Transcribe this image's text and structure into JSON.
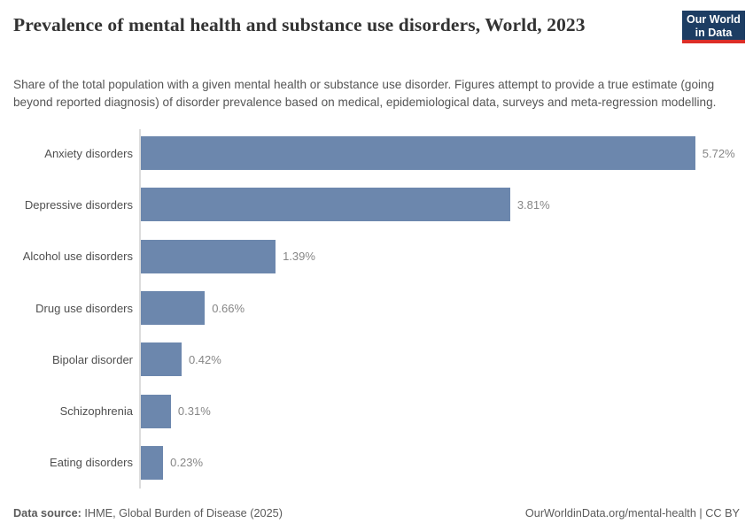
{
  "header": {
    "title": "Prevalence of mental health and substance use disorders, World, 2023",
    "subtitle": "Share of the total population with a given mental health or substance use disorder. Figures attempt to provide a true estimate (going beyond reported diagnosis) of disorder prevalence based on medical, epidemiological data, surveys and meta-regression modelling.",
    "logo": {
      "line1": "Our World",
      "line2": "in Data"
    }
  },
  "chart_data": {
    "type": "bar",
    "orientation": "horizontal",
    "title": "Prevalence of mental health and substance use disorders, World, 2023",
    "categories": [
      "Anxiety disorders",
      "Depressive disorders",
      "Alcohol use disorders",
      "Drug use disorders",
      "Bipolar disorder",
      "Schizophrenia",
      "Eating disorders"
    ],
    "values": [
      5.72,
      3.81,
      1.39,
      0.66,
      0.42,
      0.31,
      0.23
    ],
    "value_labels": [
      "5.72%",
      "3.81%",
      "1.39%",
      "0.66%",
      "0.42%",
      "0.31%",
      "0.23%"
    ],
    "unit": "%",
    "xlabel": "",
    "ylabel": "",
    "xlim": [
      0,
      5.72
    ],
    "grid": false,
    "legend": "none",
    "bar_color": "#6c87ad"
  },
  "footer": {
    "datasource_label": "Data source:",
    "datasource_value": " IHME, Global Burden of Disease (2025)",
    "credit": "OurWorldinData.org/mental-health | CC BY"
  },
  "colors": {
    "bar": "#6c87ad",
    "axis": "#dcdcdc",
    "title_text": "#333333",
    "subtitle_text": "#555555",
    "category_text": "#4f4f4f",
    "value_text": "#868686",
    "logo_bg": "#1d3d63",
    "logo_red": "#dc2e27"
  }
}
